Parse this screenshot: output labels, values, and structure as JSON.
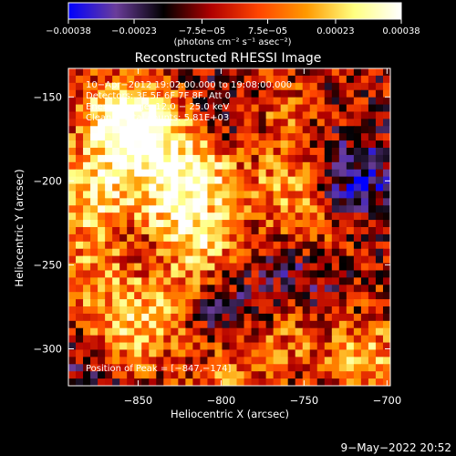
{
  "colorbar": {
    "tick_labels": [
      "−0.00038",
      "−0.00023",
      "−7.5e−05",
      "7.5e−05",
      "0.00023",
      "0.00038"
    ],
    "tick_values": [
      -0.00038,
      -0.00023,
      -7.5e-05,
      7.5e-05,
      0.00023,
      0.00038
    ],
    "range": [
      -0.00038,
      0.00038
    ],
    "units_label": "(photons cm⁻² s⁻¹ asec⁻²)",
    "colormap_stops": [
      "#0000ff",
      "#6a3d9a",
      "#000000",
      "#b00000",
      "#ff4500",
      "#ff9900",
      "#ffff80",
      "#ffffff"
    ]
  },
  "chart_data": {
    "type": "heatmap",
    "title": "Reconstructed RHESSI Image",
    "xlabel": "Heliocentric X (arcsec)",
    "ylabel": "Heliocentric Y (arcsec)",
    "xlim": [
      -892,
      -698
    ],
    "ylim": [
      -322,
      -133
    ],
    "x_ticks": [
      -850,
      -800,
      -750,
      -700
    ],
    "y_ticks": [
      -150,
      -200,
      -250,
      -300
    ],
    "x_tick_labels": [
      "−850",
      "−800",
      "−750",
      "−700"
    ],
    "y_tick_labels": [
      "−150",
      "−200",
      "−250",
      "−300"
    ],
    "annotations": {
      "time_range": "10−Apr−2012 19:02:00.000 to 19:08:00.000",
      "detectors": "Detectors: 3F 5F 6F 7F 8F, Att 0",
      "energy": "Energy Range: 12.0 − 25.0 keV",
      "clean": "Clean    Total counts: 5.81E+03",
      "peak": "Position of Peak = [−847,−174]"
    },
    "bright_sources": [
      {
        "x": -862,
        "y": -165,
        "intensity": 0.95
      },
      {
        "x": -845,
        "y": -172,
        "intensity": 1.0
      },
      {
        "x": -880,
        "y": -210,
        "intensity": 0.85
      },
      {
        "x": -835,
        "y": -215,
        "intensity": 0.8
      },
      {
        "x": -812,
        "y": -195,
        "intensity": 0.85
      },
      {
        "x": -815,
        "y": -240,
        "intensity": 0.8
      },
      {
        "x": -870,
        "y": -255,
        "intensity": 0.7
      },
      {
        "x": -860,
        "y": -300,
        "intensity": 0.65
      },
      {
        "x": -835,
        "y": -275,
        "intensity": 0.6
      },
      {
        "x": -770,
        "y": -160,
        "intensity": 0.55
      },
      {
        "x": -760,
        "y": -205,
        "intensity": 0.6
      },
      {
        "x": -740,
        "y": -235,
        "intensity": 0.5
      },
      {
        "x": -712,
        "y": -305,
        "intensity": 0.7
      },
      {
        "x": -760,
        "y": -290,
        "intensity": 0.45
      },
      {
        "x": -795,
        "y": -310,
        "intensity": 0.55
      }
    ],
    "dark_regions": [
      {
        "x": -720,
        "y": -200,
        "intensity": -0.7
      },
      {
        "x": -750,
        "y": -255,
        "intensity": -0.6
      },
      {
        "x": -800,
        "y": -280,
        "intensity": -0.55
      },
      {
        "x": -845,
        "y": -240,
        "intensity": -0.5
      },
      {
        "x": -875,
        "y": -320,
        "intensity": -0.5
      },
      {
        "x": -790,
        "y": -165,
        "intensity": -0.45
      }
    ]
  },
  "footer": {
    "date": "9−May−2022 20:52"
  }
}
